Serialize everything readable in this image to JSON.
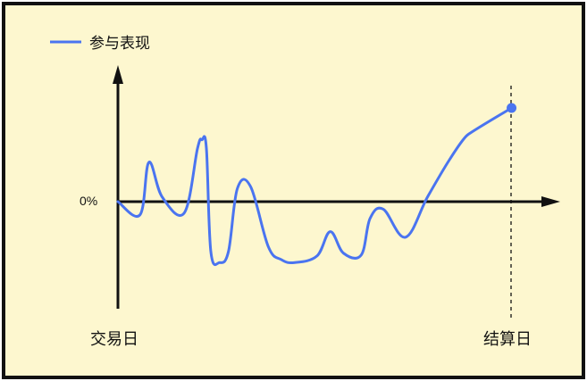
{
  "chart_data": {
    "type": "line",
    "title": "",
    "xlabel": "",
    "ylabel": "",
    "grid": false,
    "legend_placement": "top-left",
    "colors": {
      "background": "#fdf7cf",
      "series": "#4a74f0",
      "axis": "#111111"
    },
    "y_zero_label": "0%",
    "x_start_label": "交易日",
    "x_end_label": "结算日",
    "series": [
      {
        "name": "参与表现",
        "x": [
          0,
          0.05,
          0.07,
          0.1,
          0.15,
          0.18,
          0.19,
          0.2,
          0.21,
          0.23,
          0.25,
          0.27,
          0.3,
          0.34,
          0.37,
          0.4,
          0.45,
          0.48,
          0.51,
          0.55,
          0.57,
          0.6,
          0.65,
          0.7,
          0.75,
          0.79,
          0.89
        ],
        "values": [
          0,
          -0.14,
          0.42,
          0.05,
          -0.12,
          0.57,
          0.66,
          0.57,
          -0.53,
          -0.65,
          -0.53,
          0.14,
          0.16,
          -0.48,
          -0.62,
          -0.65,
          -0.58,
          -0.32,
          -0.55,
          -0.57,
          -0.18,
          -0.08,
          -0.38,
          0.05,
          0.45,
          0.71,
          1.0
        ]
      }
    ],
    "end_marker": "settlement-point",
    "ylim": [
      -1.25,
      1.45
    ],
    "xlim": [
      0,
      1
    ]
  }
}
